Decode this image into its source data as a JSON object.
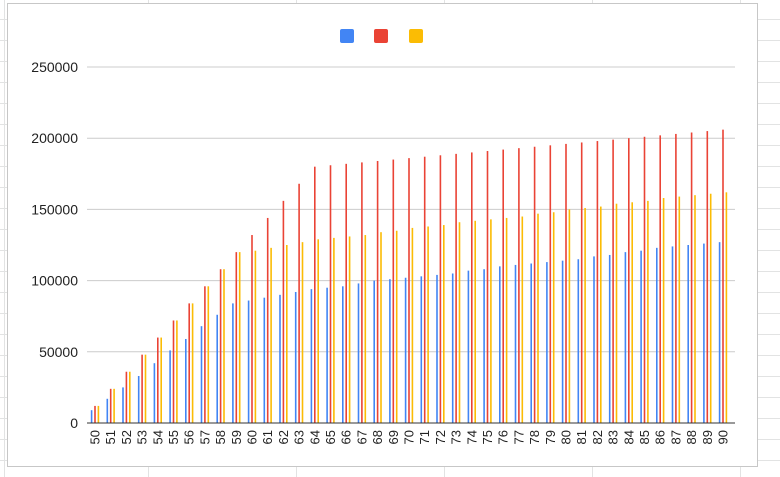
{
  "chart_data": {
    "type": "bar",
    "title": "",
    "xlabel": "",
    "ylabel": "",
    "ylim": [
      0,
      260000
    ],
    "yticks": [
      0,
      50000,
      100000,
      150000,
      200000,
      250000
    ],
    "grid": true,
    "legend": "top",
    "categories": [
      "50",
      "51",
      "52",
      "53",
      "54",
      "55",
      "56",
      "57",
      "58",
      "59",
      "60",
      "61",
      "62",
      "63",
      "64",
      "65",
      "66",
      "67",
      "68",
      "69",
      "70",
      "71",
      "72",
      "73",
      "74",
      "75",
      "76",
      "77",
      "78",
      "79",
      "80",
      "81",
      "82",
      "83",
      "84",
      "85",
      "86",
      "87",
      "88",
      "89",
      "90"
    ],
    "series": [
      {
        "color": "#4285f4",
        "values": [
          9000,
          17000,
          25000,
          33000,
          42000,
          51000,
          59000,
          68000,
          76000,
          84000,
          86000,
          88000,
          90000,
          92000,
          94000,
          95000,
          96000,
          98000,
          100000,
          101000,
          102000,
          103000,
          104000,
          105000,
          107000,
          108000,
          110000,
          111000,
          112000,
          113000,
          114000,
          115000,
          117000,
          118000,
          120000,
          121000,
          123000,
          124000,
          125000,
          126000,
          127000
        ]
      },
      {
        "color": "#ea4335",
        "values": [
          12000,
          24000,
          36000,
          48000,
          60000,
          72000,
          84000,
          96000,
          108000,
          120000,
          132000,
          144000,
          156000,
          168000,
          180000,
          181000,
          182000,
          183000,
          184000,
          185000,
          186000,
          187000,
          188000,
          189000,
          190000,
          191000,
          192000,
          193000,
          194000,
          195000,
          196000,
          197000,
          198000,
          199000,
          200000,
          201000,
          202000,
          203000,
          204000,
          205000,
          206000
        ]
      },
      {
        "color": "#fbbc04",
        "values": [
          12000,
          24000,
          36000,
          48000,
          60000,
          72000,
          84000,
          96000,
          108000,
          120000,
          121000,
          123000,
          125000,
          127000,
          129000,
          130000,
          131000,
          132000,
          134000,
          135000,
          137000,
          138000,
          139000,
          141000,
          142000,
          143000,
          144000,
          145000,
          147000,
          148000,
          150000,
          151000,
          152000,
          154000,
          155000,
          156000,
          158000,
          159000,
          160000,
          161000,
          162000
        ]
      }
    ]
  }
}
